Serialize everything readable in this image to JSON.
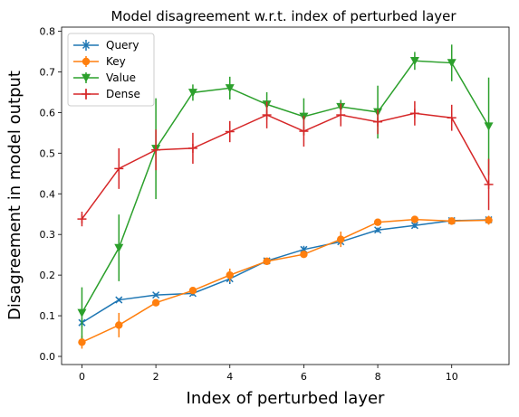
{
  "chart_data": {
    "type": "line",
    "title": "Model disagreement w.r.t. index of perturbed layer",
    "xlabel": "Index of perturbed layer",
    "ylabel": "Disagreement in model output",
    "x": [
      0,
      1,
      2,
      3,
      4,
      5,
      6,
      7,
      8,
      9,
      10,
      11
    ],
    "xlim": [
      -0.55,
      11.55
    ],
    "ylim": [
      -0.02,
      0.81
    ],
    "xticks": [
      0,
      2,
      4,
      6,
      8,
      10
    ],
    "xtick_labels": [
      "0",
      "2",
      "4",
      "6",
      "8",
      "10"
    ],
    "yticks": [
      0.0,
      0.1,
      0.2,
      0.3,
      0.4,
      0.5,
      0.6,
      0.7,
      0.8
    ],
    "ytick_labels": [
      "0.0",
      "0.1",
      "0.2",
      "0.3",
      "0.4",
      "0.5",
      "0.6",
      "0.7",
      "0.8"
    ],
    "grid": false,
    "legend_position": "top-left",
    "series": [
      {
        "name": "Query",
        "color": "#1f77b4",
        "marker": "x",
        "values": [
          0.083,
          0.139,
          0.151,
          0.155,
          0.191,
          0.235,
          0.263,
          0.282,
          0.311,
          0.322,
          0.334,
          0.336
        ],
        "errors": [
          0.01,
          0.004,
          0.004,
          0.006,
          0.013,
          0.006,
          0.009,
          0.012,
          0.006,
          0.006,
          0.004,
          0.005
        ]
      },
      {
        "name": "Key",
        "color": "#ff7f0e",
        "marker": "o",
        "values": [
          0.035,
          0.077,
          0.132,
          0.162,
          0.2,
          0.234,
          0.251,
          0.288,
          0.33,
          0.337,
          0.333,
          0.335
        ],
        "errors": [
          0.016,
          0.03,
          0.006,
          0.008,
          0.016,
          0.008,
          0.006,
          0.019,
          0.005,
          0.005,
          0.005,
          0.011
        ]
      },
      {
        "name": "Value",
        "color": "#2ca02c",
        "marker": "v",
        "values": [
          0.107,
          0.267,
          0.511,
          0.649,
          0.66,
          0.62,
          0.59,
          0.614,
          0.601,
          0.727,
          0.722,
          0.566
        ],
        "errors": [
          0.063,
          0.082,
          0.124,
          0.02,
          0.028,
          0.03,
          0.045,
          0.017,
          0.065,
          0.022,
          0.045,
          0.12
        ]
      },
      {
        "name": "Dense",
        "color": "#d62728",
        "marker": "+",
        "values": [
          0.338,
          0.462,
          0.508,
          0.512,
          0.553,
          0.594,
          0.554,
          0.594,
          0.577,
          0.598,
          0.587,
          0.423
        ],
        "errors": [
          0.018,
          0.05,
          0.05,
          0.038,
          0.026,
          0.033,
          0.038,
          0.028,
          0.03,
          0.03,
          0.032,
          0.063
        ]
      }
    ]
  }
}
